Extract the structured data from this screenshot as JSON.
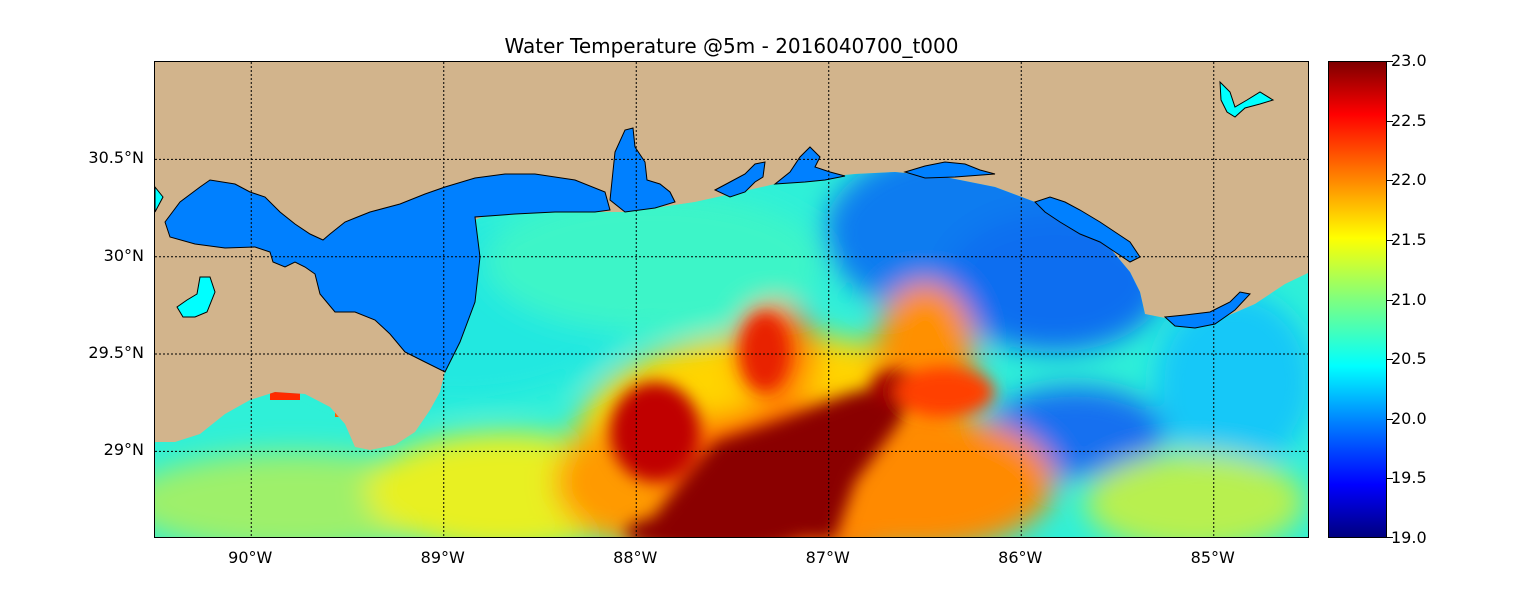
{
  "title": "Water Temperature @5m - 2016040700_t000",
  "map": {
    "type": "heatmap",
    "variable": "Water Temperature",
    "depth": "5m",
    "run": "2016040700_t000",
    "extent": {
      "lon": [
        -90.5,
        -84.5
      ],
      "lat": [
        28.55,
        31.0
      ]
    },
    "land_color": "#d2b48c",
    "inland_water_color": "#0080ff",
    "lake_color": "#00ffff",
    "grid": true,
    "lon_ticks": [
      {
        "value": -90,
        "label": "90°W"
      },
      {
        "value": -89,
        "label": "89°W"
      },
      {
        "value": -88,
        "label": "88°W"
      },
      {
        "value": -87,
        "label": "87°W"
      },
      {
        "value": -86,
        "label": "86°W"
      },
      {
        "value": -85,
        "label": "85°W"
      }
    ],
    "lat_ticks": [
      {
        "value": 30.5,
        "label": "30.5°N"
      },
      {
        "value": 30.0,
        "label": "30°N"
      },
      {
        "value": 29.5,
        "label": "29.5°N"
      },
      {
        "value": 29.0,
        "label": "29°N"
      }
    ]
  },
  "colorbar": {
    "colormap": "jet",
    "range": [
      19.0,
      23.0
    ],
    "ticks": [
      "19.0",
      "19.5",
      "20.0",
      "20.5",
      "21.0",
      "21.5",
      "22.0",
      "22.5",
      "23.0"
    ]
  },
  "chart_data": {
    "type": "heatmap",
    "title": "Water Temperature @5m - 2016040700_t000",
    "xlabel": "",
    "ylabel": "",
    "x_range": [
      -90.5,
      -84.5
    ],
    "y_range": [
      28.55,
      31.0
    ],
    "value_range": [
      19.0,
      23.0
    ],
    "units_shown": "",
    "grid": true,
    "features": [
      {
        "name": "warm plume",
        "lon": [
          -87.8,
          -86.6
        ],
        "lat": [
          28.55,
          29.4
        ],
        "value": 23.0
      },
      {
        "name": "warm eddy",
        "lon": [
          -88.2,
          -87.6
        ],
        "lat": [
          28.9,
          29.4
        ],
        "value": 22.7
      },
      {
        "name": "warm filament",
        "lon": [
          -87.5,
          -87.2
        ],
        "lat": [
          29.3,
          29.7
        ],
        "value": 22.2
      },
      {
        "name": "cool pool",
        "lon": [
          -86.4,
          -85.5
        ],
        "lat": [
          29.5,
          30.3
        ],
        "value": 19.9
      },
      {
        "name": "cool pool south",
        "lon": [
          -86.0,
          -85.4
        ],
        "lat": [
          29.0,
          29.4
        ],
        "value": 19.9
      },
      {
        "name": "shelf water",
        "lon": [
          -89.2,
          -88.2
        ],
        "lat": [
          29.6,
          30.2
        ],
        "value": 20.6
      }
    ]
  }
}
